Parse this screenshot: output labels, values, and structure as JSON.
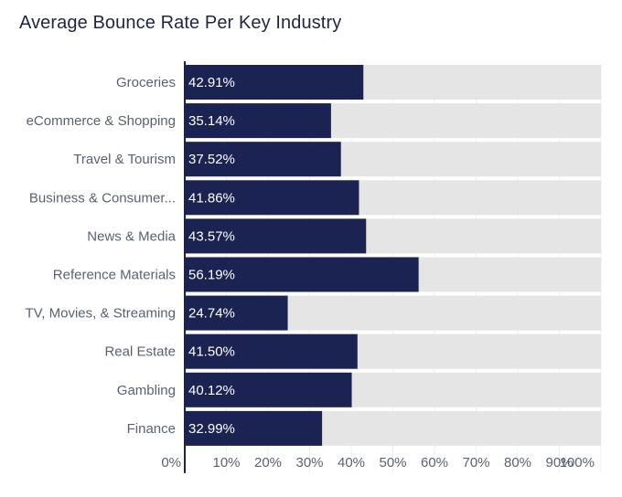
{
  "chart_data": {
    "type": "bar",
    "orientation": "horizontal",
    "title": "Average Bounce Rate Per Key Industry",
    "xlabel": "",
    "ylabel": "",
    "xlim": [
      0,
      100
    ],
    "grid": true,
    "categories": [
      "Groceries",
      "eCommerce & Shopping",
      "Travel & Tourism",
      "Business & Consumer...",
      "News & Media",
      "Reference Materials",
      "TV, Movies, & Streaming",
      "Real Estate",
      "Gambling",
      "Finance"
    ],
    "values": [
      42.91,
      35.14,
      37.52,
      41.86,
      43.57,
      56.19,
      24.74,
      41.5,
      40.12,
      32.99
    ],
    "value_labels": [
      "42.91%",
      "35.14%",
      "37.52%",
      "41.86%",
      "43.57%",
      "56.19%",
      "24.74%",
      "41.50%",
      "40.12%",
      "32.99%"
    ],
    "ticks": [
      0,
      10,
      20,
      30,
      40,
      50,
      60,
      70,
      80,
      90,
      100
    ],
    "tick_labels": [
      "0%",
      "10%",
      "20%",
      "30%",
      "40%",
      "50%",
      "60%",
      "70%",
      "80%",
      "90%",
      "100%"
    ],
    "colors": {
      "bar": "#1b2352",
      "track": "#e5e5e5",
      "axis": "#1b2352",
      "grid": "#f0f0f2"
    }
  }
}
